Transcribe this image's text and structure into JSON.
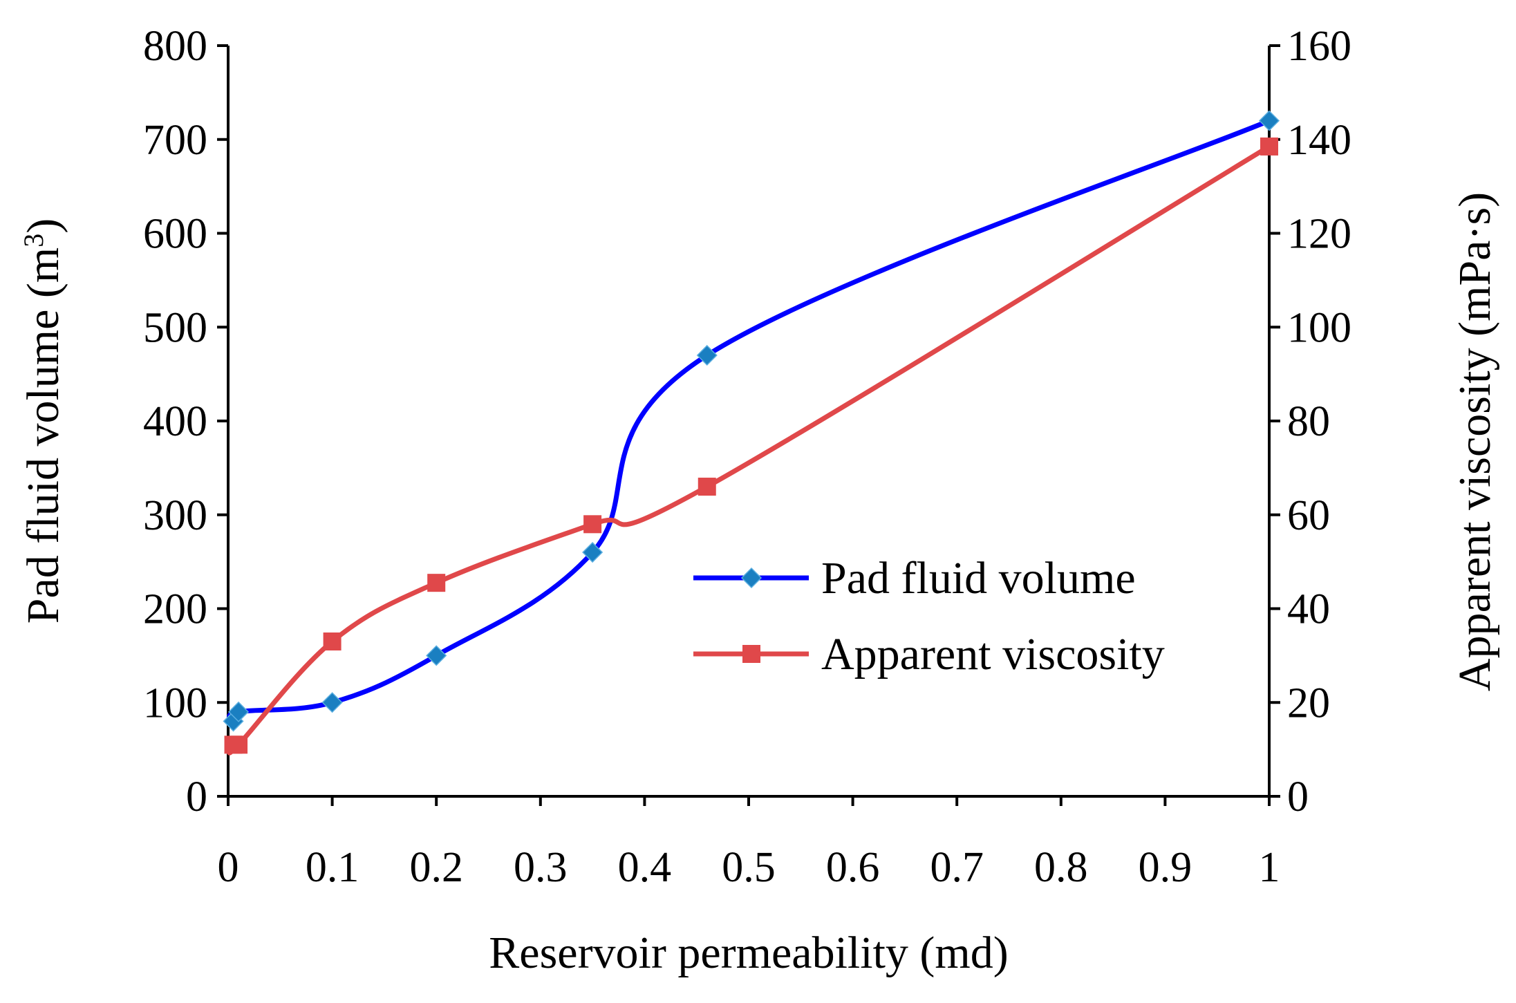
{
  "chart_data": {
    "type": "line",
    "title": "",
    "xlabel": "Reservoir permeability (md)",
    "ylabel_left": {
      "prefix": "Pad fluid volume (m",
      "sup": "3",
      "suffix": ")"
    },
    "ylabel_right": "Apparent viscosity (mPa·s)",
    "xlim": [
      0,
      1
    ],
    "ylim_left": [
      0,
      800
    ],
    "ylim_right": [
      0,
      160
    ],
    "x_ticks": [
      "0",
      "0.1",
      "0.2",
      "0.3",
      "0.4",
      "0.5",
      "0.6",
      "0.7",
      "0.8",
      "0.9",
      "1"
    ],
    "y_left_ticks": [
      "0",
      "100",
      "200",
      "300",
      "400",
      "500",
      "600",
      "700",
      "800"
    ],
    "y_right_ticks": [
      "0",
      "20",
      "40",
      "60",
      "80",
      "100",
      "120",
      "140",
      "160"
    ],
    "grid": false,
    "legend_position": "center-right",
    "series": [
      {
        "name": "Pad fluid volume",
        "axis": "left",
        "color": "#0000ff",
        "marker": "diamond",
        "marker_color": "#1a7fc1",
        "x": [
          0.005,
          0.01,
          0.1,
          0.2,
          0.35,
          0.46,
          1.0
        ],
        "y": [
          80,
          90,
          100,
          150,
          260,
          470,
          720
        ]
      },
      {
        "name": "Apparent viscosity",
        "axis": "right",
        "color": "#e0484a",
        "marker": "square",
        "marker_color": "#e0484a",
        "x": [
          0.005,
          0.01,
          0.1,
          0.2,
          0.35,
          0.46,
          1.0
        ],
        "y": [
          11,
          11,
          33,
          45.5,
          58,
          66,
          138.5
        ]
      }
    ]
  }
}
